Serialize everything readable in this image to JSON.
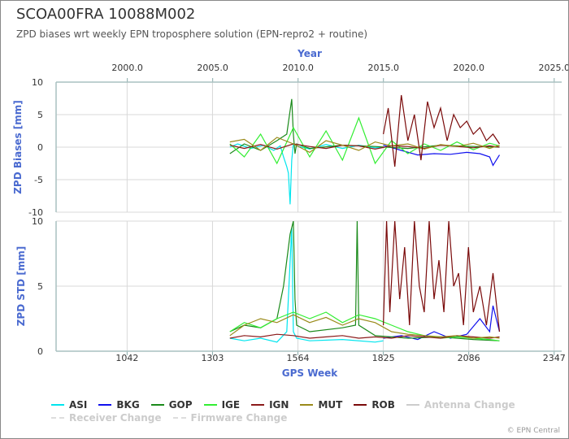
{
  "title": "SCOA00FRA 10088M002",
  "subtitle": "ZPD biases wrt weekly EPN troposphere solution (EPN-repro2 + routine)",
  "credits": "© EPN Central",
  "chart_data": [
    {
      "type": "line",
      "panel": "top",
      "ylabel": "ZPD Biases [mm]",
      "ylim": [
        -10,
        10
      ],
      "yticks": [
        "-10",
        "-5",
        "0",
        "5",
        "10"
      ],
      "x_axis_top": {
        "label": "Year",
        "ticks": [
          "2000.0",
          "2005.0",
          "2010.0",
          "2015.0",
          "2020.0",
          "2025.0"
        ]
      },
      "series": [
        {
          "name": "ASI",
          "color": "#00e5ee",
          "x": [
            1356,
            1380,
            1420,
            1460,
            1490,
            1510,
            1520,
            1530,
            1535,
            1540,
            1545,
            1550,
            1560,
            1600,
            1650,
            1700,
            1750,
            1800,
            1825
          ],
          "y": [
            0,
            0.5,
            -0.2,
            0.3,
            -0.5,
            0.2,
            -1.5,
            -3,
            -4,
            -8.8,
            -2,
            0.5,
            0.2,
            -0.3,
            0.4,
            -0.2,
            0.3,
            -0.1,
            0
          ]
        },
        {
          "name": "BKG",
          "color": "#1010ee",
          "x": [
            1825,
            1880,
            1930,
            1980,
            2030,
            2080,
            2120,
            2150,
            2160,
            2180
          ],
          "y": [
            0.3,
            -0.5,
            -1.2,
            -1.0,
            -1.1,
            -0.8,
            -1.0,
            -1.5,
            -2.8,
            -1.2
          ]
        },
        {
          "name": "GOP",
          "color": "#1a8a1a",
          "x": [
            1356,
            1400,
            1450,
            1500,
            1530,
            1545,
            1550,
            1555,
            1560,
            1600,
            1700,
            1800,
            1900,
            2000,
            2100,
            2180
          ],
          "y": [
            -1,
            0.5,
            -0.5,
            1,
            2,
            7.4,
            2,
            -1,
            0.5,
            -0.2,
            0.3,
            0.1,
            -0.2,
            0.3,
            0.1,
            0
          ]
        },
        {
          "name": "IGE",
          "color": "#33ee33",
          "x": [
            1356,
            1400,
            1450,
            1500,
            1550,
            1600,
            1650,
            1700,
            1750,
            1800,
            1850,
            1900,
            1950,
            2000,
            2050,
            2100,
            2150,
            2180
          ],
          "y": [
            0.5,
            -1.5,
            2,
            -2.5,
            3,
            -1.5,
            2.5,
            -2,
            4.5,
            -2.5,
            1,
            -1,
            0.5,
            -0.5,
            0.8,
            -0.4,
            0.6,
            0.2
          ]
        },
        {
          "name": "IGN",
          "color": "#8b1a1a",
          "x": [
            1356,
            1400,
            1450,
            1500,
            1550,
            1600,
            1650,
            1700,
            1750,
            1800,
            1850,
            1900,
            1950,
            2000,
            2050,
            2100,
            2150,
            2180
          ],
          "y": [
            0.3,
            -0.2,
            0.4,
            -0.3,
            0.5,
            0.1,
            -0.2,
            0.3,
            0.2,
            -0.3,
            0.2,
            0.1,
            -0.2,
            0.3,
            0.1,
            -0.1,
            0.2,
            0
          ]
        },
        {
          "name": "MUT",
          "color": "#9a8a1a",
          "x": [
            1356,
            1400,
            1450,
            1500,
            1550,
            1600,
            1650,
            1700,
            1750,
            1800,
            1850,
            1900,
            1950,
            2000,
            2050,
            2100,
            2150,
            2180
          ],
          "y": [
            0.8,
            1.2,
            -0.5,
            1.5,
            0.5,
            -0.8,
            1.0,
            0.3,
            -0.5,
            0.8,
            0.2,
            0.5,
            -0.3,
            0.4,
            0.1,
            0.6,
            -0.2,
            0.3
          ]
        },
        {
          "name": "ROB",
          "color": "#7a0a0a",
          "x": [
            1825,
            1840,
            1860,
            1880,
            1900,
            1920,
            1940,
            1960,
            1980,
            2000,
            2020,
            2040,
            2060,
            2080,
            2100,
            2120,
            2140,
            2160,
            2180
          ],
          "y": [
            2,
            6,
            -3,
            8,
            1,
            5,
            -2,
            7,
            3,
            6,
            1,
            5,
            3,
            4,
            2,
            3,
            1,
            2,
            0.5
          ]
        }
      ]
    },
    {
      "type": "line",
      "panel": "bottom",
      "ylabel": "ZPD STD [mm]",
      "xlabel": "GPS Week",
      "ylim": [
        0,
        10
      ],
      "yticks": [
        "0",
        "5",
        "10"
      ],
      "xticks": [
        "1042",
        "1303",
        "1564",
        "1825",
        "2086",
        "2347"
      ],
      "xlim": [
        825,
        2370
      ],
      "series": [
        {
          "name": "ASI",
          "color": "#00e5ee",
          "x": [
            1356,
            1400,
            1450,
            1500,
            1530,
            1545,
            1550,
            1560,
            1600,
            1700,
            1800,
            1825
          ],
          "y": [
            1.0,
            0.8,
            1.0,
            0.7,
            1.5,
            9.5,
            1.5,
            1.0,
            0.8,
            0.9,
            0.7,
            0.8
          ]
        },
        {
          "name": "BKG",
          "color": "#1010ee",
          "x": [
            1825,
            1880,
            1930,
            1980,
            2030,
            2080,
            2120,
            2150,
            2160,
            2180
          ],
          "y": [
            1.0,
            1.2,
            0.9,
            1.5,
            1.0,
            1.3,
            2.5,
            1.5,
            3.5,
            1.5
          ]
        },
        {
          "name": "GOP",
          "color": "#1a8a1a",
          "x": [
            1356,
            1400,
            1450,
            1500,
            1520,
            1540,
            1550,
            1555,
            1560,
            1600,
            1700,
            1740,
            1745,
            1750,
            1800,
            1900,
            2000,
            2100,
            2180
          ],
          "y": [
            1.5,
            2.0,
            1.8,
            2.5,
            5,
            9,
            10,
            4,
            2,
            1.5,
            1.8,
            2,
            10,
            2,
            1.2,
            1.0,
            1.1,
            0.9,
            0.8
          ]
        },
        {
          "name": "IGE",
          "color": "#33ee33",
          "x": [
            1356,
            1400,
            1450,
            1500,
            1550,
            1600,
            1650,
            1700,
            1750,
            1800,
            1850,
            1900,
            1950,
            2000,
            2050,
            2100,
            2150,
            2180
          ],
          "y": [
            1.5,
            2.2,
            1.8,
            2.5,
            3.0,
            2.5,
            3.0,
            2.2,
            2.8,
            2.5,
            2.0,
            1.5,
            1.2,
            1.0,
            1.1,
            1.0,
            0.9,
            0.8
          ]
        },
        {
          "name": "IGN",
          "color": "#8b1a1a",
          "x": [
            1356,
            1400,
            1450,
            1500,
            1550,
            1600,
            1650,
            1700,
            1750,
            1800,
            1850,
            1900,
            1950,
            2000,
            2050,
            2100,
            2150,
            2180
          ],
          "y": [
            1.0,
            1.2,
            1.1,
            1.3,
            1.2,
            1.0,
            1.1,
            1.2,
            1.0,
            1.1,
            1.0,
            1.2,
            1.1,
            1.0,
            1.2,
            1.1,
            1.0,
            1.1
          ]
        },
        {
          "name": "MUT",
          "color": "#9a8a1a",
          "x": [
            1356,
            1400,
            1450,
            1500,
            1550,
            1600,
            1650,
            1700,
            1750,
            1800,
            1850,
            1900,
            1950,
            2000,
            2050,
            2100,
            2150,
            2180
          ],
          "y": [
            1.2,
            2.0,
            2.5,
            2.2,
            2.8,
            2.2,
            2.6,
            2.0,
            2.5,
            2.2,
            1.5,
            1.3,
            1.2,
            1.1,
            1.2,
            1.0,
            1.1,
            1.0
          ]
        },
        {
          "name": "ROB",
          "color": "#7a0a0a",
          "x": [
            1825,
            1835,
            1845,
            1860,
            1875,
            1890,
            1905,
            1920,
            1935,
            1950,
            1965,
            1980,
            1995,
            2010,
            2025,
            2040,
            2055,
            2070,
            2085,
            2100,
            2120,
            2140,
            2160,
            2180
          ],
          "y": [
            2,
            10,
            3,
            10,
            4,
            8,
            2,
            10,
            5,
            3,
            10,
            4,
            7,
            3,
            10,
            5,
            6,
            2,
            8,
            3,
            5,
            2,
            6,
            1.5
          ]
        }
      ]
    }
  ],
  "legend": {
    "items": [
      {
        "label": "ASI",
        "color": "#00e5ee",
        "active": true
      },
      {
        "label": "BKG",
        "color": "#1010ee",
        "active": true
      },
      {
        "label": "GOP",
        "color": "#1a8a1a",
        "active": true
      },
      {
        "label": "IGE",
        "color": "#33ee33",
        "active": true
      },
      {
        "label": "IGN",
        "color": "#8b1a1a",
        "active": true
      },
      {
        "label": "MUT",
        "color": "#9a8a1a",
        "active": true
      },
      {
        "label": "ROB",
        "color": "#7a0a0a",
        "active": true
      },
      {
        "label": "Antenna Change",
        "color": "#cccccc",
        "active": false
      },
      {
        "label": "Receiver Change",
        "color": "#dddddd",
        "active": false,
        "dashed": true
      },
      {
        "label": "Firmware Change",
        "color": "#dddddd",
        "active": false,
        "dashed": true
      }
    ]
  }
}
